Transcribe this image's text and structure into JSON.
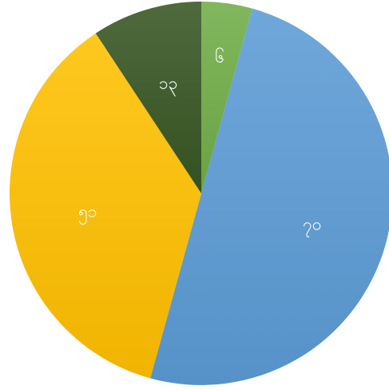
{
  "chart_data": {
    "type": "pie",
    "title": "",
    "start_angle_deg": 0,
    "direction": "clockwise",
    "slices": [
      {
        "label": "၆",
        "value": 6,
        "color": "#70ad47"
      },
      {
        "label": "၇၀",
        "value": 70,
        "color": "#5b9bd5"
      },
      {
        "label": "၅၁",
        "value": 51,
        "color": "#ffc000"
      },
      {
        "label": "၁၃",
        "value": 13,
        "color": "#375623"
      }
    ]
  }
}
